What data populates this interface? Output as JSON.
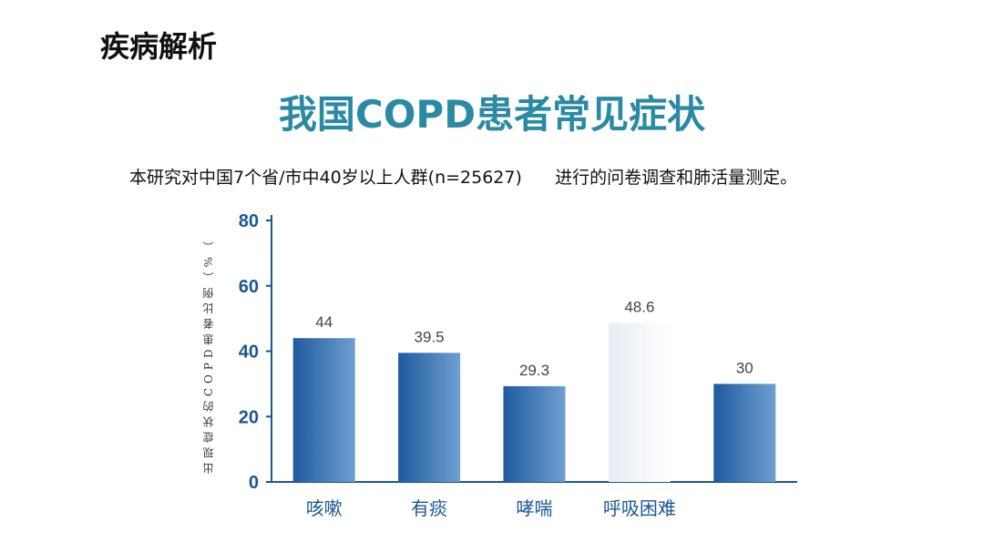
{
  "page": {
    "section_title": "疾病解析",
    "main_title": "我国COPD患者常见症状",
    "subtitle": "本研究对中国7个省/市中40岁以上人群(n=25627)      进行的问卷调查和肺活量测定。"
  },
  "chart_data": {
    "type": "bar",
    "title": "我国COPD患者常见症状",
    "ylabel": "出现症状的COPD患者比例（%（",
    "xlabel": "",
    "categories": [
      "咳嗽",
      "有痰",
      "哮喘",
      "呼吸困难",
      ""
    ],
    "values": [
      44,
      39.5,
      29.3,
      48.6,
      30
    ],
    "value_labels": [
      "44",
      "39.5",
      "29.3",
      "48.6",
      "30"
    ],
    "highlighted_index": 3,
    "ylim": [
      0,
      80
    ],
    "yticks": [
      0,
      20,
      40,
      60,
      80
    ],
    "colors": {
      "bar_dark": "#1f5a9e",
      "bar_light": "#6f9fd2",
      "faded": "#e9eef5",
      "axis": "#1a5693",
      "label_text": "#444444"
    }
  }
}
